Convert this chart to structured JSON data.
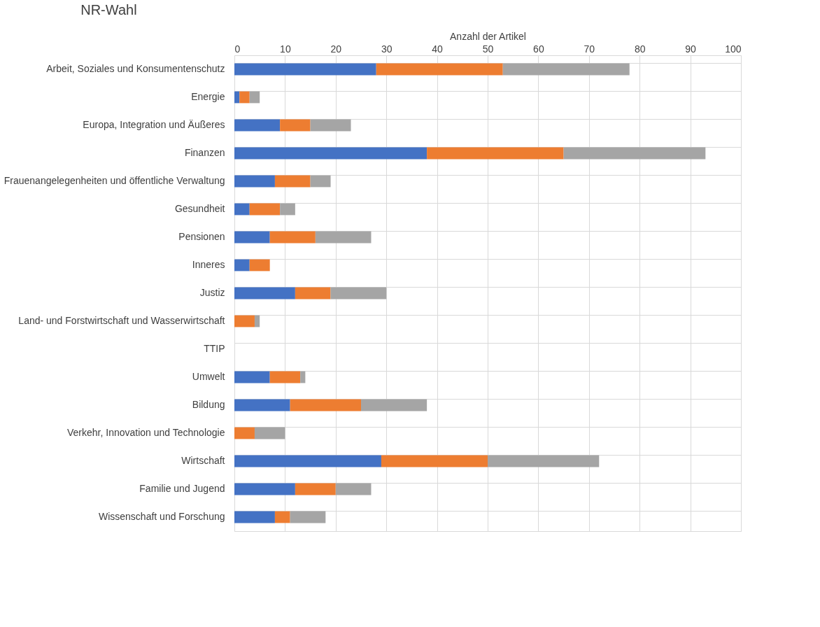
{
  "chart_data": {
    "type": "bar",
    "orientation": "horizontal",
    "stacked": true,
    "title": "NR-Wahl",
    "xlabel": "Anzahl der Artikel",
    "categories": [
      "Arbeit, Soziales und Konsumentenschutz",
      "Energie",
      "Europa, Integration und Äußeres",
      "Finanzen",
      "Frauenangelegenheiten und öffentliche Verwaltung",
      "Gesundheit",
      "Pensionen",
      "Inneres",
      "Justiz",
      "Land- und Forstwirtschaft und Wasserwirtschaft",
      "TTIP",
      "Umwelt",
      "Bildung",
      "Verkehr, Innovation und Technologie",
      "Wirtschaft",
      "Familie und Jugend",
      "Wissenschaft und Forschung"
    ],
    "series": [
      {
        "color": "#4472c4",
        "values": [
          28,
          1,
          9,
          38,
          8,
          3,
          7,
          3,
          12,
          0,
          0,
          7,
          11,
          0,
          29,
          12,
          8
        ]
      },
      {
        "color": "#ed7d31",
        "values": [
          25,
          2,
          6,
          27,
          7,
          6,
          9,
          4,
          7,
          4,
          0,
          6,
          14,
          4,
          21,
          8,
          3
        ]
      },
      {
        "color": "#a5a5a5",
        "values": [
          25,
          2,
          8,
          28,
          4,
          3,
          11,
          0,
          11,
          1,
          0,
          1,
          13,
          6,
          22,
          7,
          7
        ]
      }
    ],
    "xlim": [
      0,
      100
    ],
    "xticks": [
      0,
      10,
      20,
      30,
      40,
      50,
      60,
      70,
      80,
      90,
      100
    ],
    "grid": true,
    "legend": false
  }
}
